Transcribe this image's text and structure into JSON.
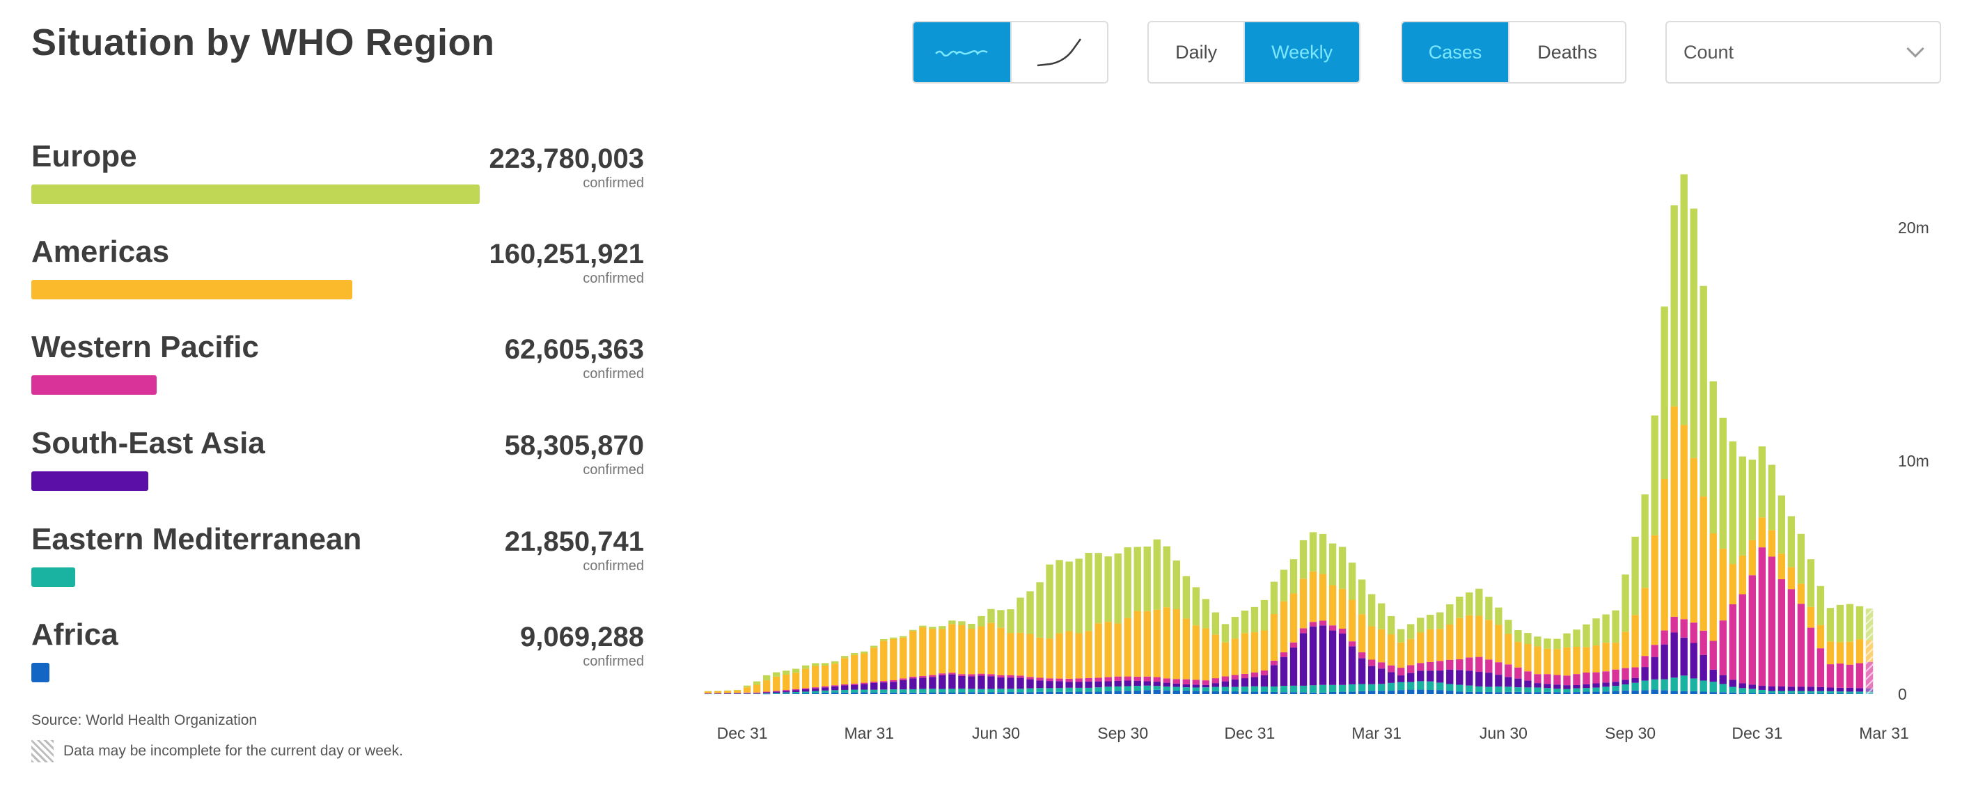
{
  "title": "Situation by WHO Region",
  "toolbar": {
    "chart_style": [
      {
        "icon": "sparkline-wave-icon",
        "active": true
      },
      {
        "icon": "cumulative-curve-icon",
        "active": false
      }
    ],
    "period": [
      {
        "label": "Daily",
        "active": false
      },
      {
        "label": "Weekly",
        "active": true
      }
    ],
    "metric": [
      {
        "label": "Cases",
        "active": true
      },
      {
        "label": "Deaths",
        "active": false
      }
    ],
    "scale_select": {
      "value": "Count"
    }
  },
  "colors": {
    "accent": "#0d96d6"
  },
  "regions": [
    {
      "name": "Europe",
      "count": "223,780,003",
      "sub": "confirmed",
      "value": 223780003,
      "color": "#bfd755"
    },
    {
      "name": "Americas",
      "count": "160,251,921",
      "sub": "confirmed",
      "value": 160251921,
      "color": "#fbb92c"
    },
    {
      "name": "Western Pacific",
      "count": "62,605,363",
      "sub": "confirmed",
      "value": 62605363,
      "color": "#d9339a"
    },
    {
      "name": "South-East Asia",
      "count": "58,305,870",
      "sub": "confirmed",
      "value": 58305870,
      "color": "#5c0fa6"
    },
    {
      "name": "Eastern Mediterranean",
      "count": "21,850,741",
      "sub": "confirmed",
      "value": 21850741,
      "color": "#1ab2a0"
    },
    {
      "name": "Africa",
      "count": "9,069,288",
      "sub": "confirmed",
      "value": 9069288,
      "color": "#1466c4"
    }
  ],
  "footer": {
    "source": "Source: World Health Organization",
    "note": "Data may be incomplete for the current day or week."
  },
  "chart_data": {
    "type": "bar",
    "stacked": true,
    "unit": "weekly confirmed cases (millions)",
    "bars": 120,
    "y_ticks": [
      {
        "value": 0,
        "label": "0"
      },
      {
        "value": 10,
        "label": "10m"
      },
      {
        "value": 20,
        "label": "20m"
      }
    ],
    "ylim": [
      0,
      23.2
    ],
    "x_ticks": [
      {
        "week": 0,
        "label": "Dec 31"
      },
      {
        "week": 13,
        "label": "Mar 31"
      },
      {
        "week": 26,
        "label": "Jun 30"
      },
      {
        "week": 39,
        "label": "Sep 30"
      },
      {
        "week": 52,
        "label": "Dec 31"
      },
      {
        "week": 65,
        "label": "Mar 31"
      },
      {
        "week": 78,
        "label": "Jun 30"
      },
      {
        "week": 91,
        "label": "Sep 30"
      },
      {
        "week": 104,
        "label": "Dec 31"
      },
      {
        "week": 117,
        "label": "Mar 31"
      }
    ],
    "series_keys": {
      "Africa": [
        [
          0,
          0
        ],
        [
          12,
          0
        ],
        [
          20,
          0.07
        ],
        [
          30,
          0.07
        ],
        [
          45,
          0.1
        ],
        [
          53,
          0.17
        ],
        [
          60,
          0.12
        ],
        [
          70,
          0.07
        ],
        [
          76,
          0.15
        ],
        [
          80,
          0.2
        ],
        [
          85,
          0.1
        ],
        [
          95,
          0.08
        ],
        [
          104,
          0.18
        ],
        [
          108,
          0.12
        ],
        [
          113,
          0.05
        ],
        [
          127,
          0.02
        ]
      ],
      "Eastern Mediterranean": [
        [
          0,
          0
        ],
        [
          12,
          0.02
        ],
        [
          20,
          0.1
        ],
        [
          28,
          0.15
        ],
        [
          40,
          0.15
        ],
        [
          50,
          0.2
        ],
        [
          56,
          0.15
        ],
        [
          62,
          0.2
        ],
        [
          68,
          0.3
        ],
        [
          74,
          0.3
        ],
        [
          80,
          0.35
        ],
        [
          86,
          0.25
        ],
        [
          95,
          0.15
        ],
        [
          100,
          0.2
        ],
        [
          104,
          0.45
        ],
        [
          107,
          0.65
        ],
        [
          112,
          0.25
        ],
        [
          116,
          0.1
        ],
        [
          127,
          0.08
        ]
      ],
      "South-East Asia": [
        [
          0,
          0
        ],
        [
          12,
          0.02
        ],
        [
          20,
          0.15
        ],
        [
          26,
          0.35
        ],
        [
          32,
          0.6
        ],
        [
          36,
          0.55
        ],
        [
          42,
          0.3
        ],
        [
          52,
          0.2
        ],
        [
          58,
          0.1
        ],
        [
          64,
          0.5
        ],
        [
          68,
          2.1
        ],
        [
          70,
          2.6
        ],
        [
          72,
          2.1
        ],
        [
          75,
          0.8
        ],
        [
          78,
          0.3
        ],
        [
          83,
          0.6
        ],
        [
          85,
          0.7
        ],
        [
          88,
          0.5
        ],
        [
          92,
          0.2
        ],
        [
          96,
          0.15
        ],
        [
          102,
          0.2
        ],
        [
          106,
          1.9
        ],
        [
          108,
          1.5
        ],
        [
          110,
          0.5
        ],
        [
          113,
          0.2
        ],
        [
          127,
          0.15
        ]
      ],
      "Western Pacific": [
        [
          0,
          0
        ],
        [
          12,
          0.03
        ],
        [
          20,
          0.05
        ],
        [
          40,
          0.1
        ],
        [
          52,
          0.2
        ],
        [
          65,
          0.2
        ],
        [
          70,
          0.2
        ],
        [
          78,
          0.3
        ],
        [
          82,
          0.4
        ],
        [
          86,
          0.6
        ],
        [
          92,
          0.4
        ],
        [
          100,
          0.5
        ],
        [
          104,
          0.5
        ],
        [
          106,
          0.7
        ],
        [
          108,
          0.8
        ],
        [
          110,
          1.3
        ],
        [
          111,
          2.3
        ],
        [
          113,
          4.2
        ],
        [
          115,
          5.6
        ],
        [
          116,
          5.4
        ],
        [
          118,
          4.0
        ],
        [
          120,
          2.6
        ],
        [
          122,
          1.0
        ],
        [
          125,
          1.1
        ],
        [
          127,
          1.0
        ]
      ],
      "Americas": [
        [
          0,
          0
        ],
        [
          10,
          0.1
        ],
        [
          13,
          0.5
        ],
        [
          20,
          1.0
        ],
        [
          26,
          1.7
        ],
        [
          30,
          2.1
        ],
        [
          36,
          2.0
        ],
        [
          40,
          1.8
        ],
        [
          46,
          2.0
        ],
        [
          50,
          2.6
        ],
        [
          53,
          3.1
        ],
        [
          56,
          2.6
        ],
        [
          60,
          1.6
        ],
        [
          64,
          1.8
        ],
        [
          68,
          2.2
        ],
        [
          70,
          2.0
        ],
        [
          74,
          1.6
        ],
        [
          78,
          1.1
        ],
        [
          82,
          1.5
        ],
        [
          86,
          1.8
        ],
        [
          90,
          1.2
        ],
        [
          96,
          1.1
        ],
        [
          100,
          1.2
        ],
        [
          103,
          2.8
        ],
        [
          104,
          4.8
        ],
        [
          106,
          8.3
        ],
        [
          108,
          7.4
        ],
        [
          110,
          4.5
        ],
        [
          112,
          1.9
        ],
        [
          114,
          1.4
        ],
        [
          118,
          0.9
        ],
        [
          122,
          1.0
        ],
        [
          127,
          0.9
        ]
      ],
      "Europe": [
        [
          0,
          0
        ],
        [
          10,
          0.02
        ],
        [
          13,
          0.2
        ],
        [
          20,
          0.1
        ],
        [
          28,
          0.05
        ],
        [
          34,
          0.2
        ],
        [
          38,
          1.0
        ],
        [
          42,
          3.0
        ],
        [
          46,
          3.1
        ],
        [
          50,
          3.0
        ],
        [
          53,
          2.8
        ],
        [
          56,
          1.8
        ],
        [
          60,
          0.8
        ],
        [
          64,
          1.2
        ],
        [
          68,
          1.6
        ],
        [
          70,
          1.9
        ],
        [
          74,
          1.5
        ],
        [
          78,
          0.6
        ],
        [
          82,
          0.7
        ],
        [
          86,
          1.1
        ],
        [
          90,
          0.5
        ],
        [
          94,
          0.4
        ],
        [
          100,
          1.5
        ],
        [
          104,
          5.0
        ],
        [
          106,
          8.5
        ],
        [
          107,
          11.5
        ],
        [
          108,
          10.8
        ],
        [
          110,
          7.0
        ],
        [
          113,
          4.0
        ],
        [
          115,
          3.0
        ],
        [
          116,
          2.6
        ],
        [
          118,
          2.4
        ],
        [
          120,
          2.0
        ],
        [
          122,
          1.5
        ],
        [
          124,
          1.5
        ],
        [
          127,
          1.3
        ]
      ]
    },
    "incomplete_last_bar": true
  }
}
